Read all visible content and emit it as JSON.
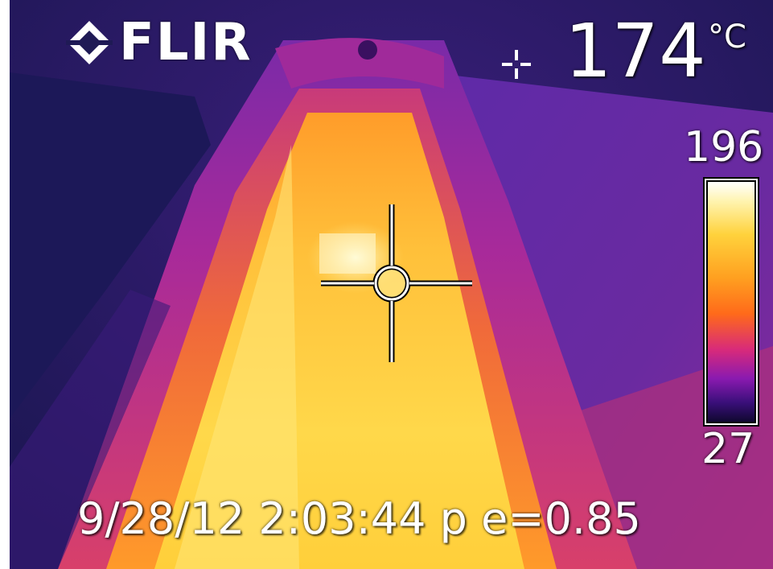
{
  "brand": {
    "name": "FLIR",
    "logo_icon": "flir-diamond-icon"
  },
  "spot_reading": {
    "icon": "spot-meter-icon",
    "value": "174",
    "unit": "°C"
  },
  "scale": {
    "max": "196",
    "min": "27",
    "palette": "iron"
  },
  "footer": {
    "timestamp": "9/28/12  2:03:44 p e=0.85"
  },
  "colors": {
    "background": "#1f1a55",
    "hot": "#ffd23c",
    "warm": "#ff7a1a",
    "mid": "#c83a8a",
    "cool": "#5a1e9a",
    "text": "#ffffff"
  }
}
